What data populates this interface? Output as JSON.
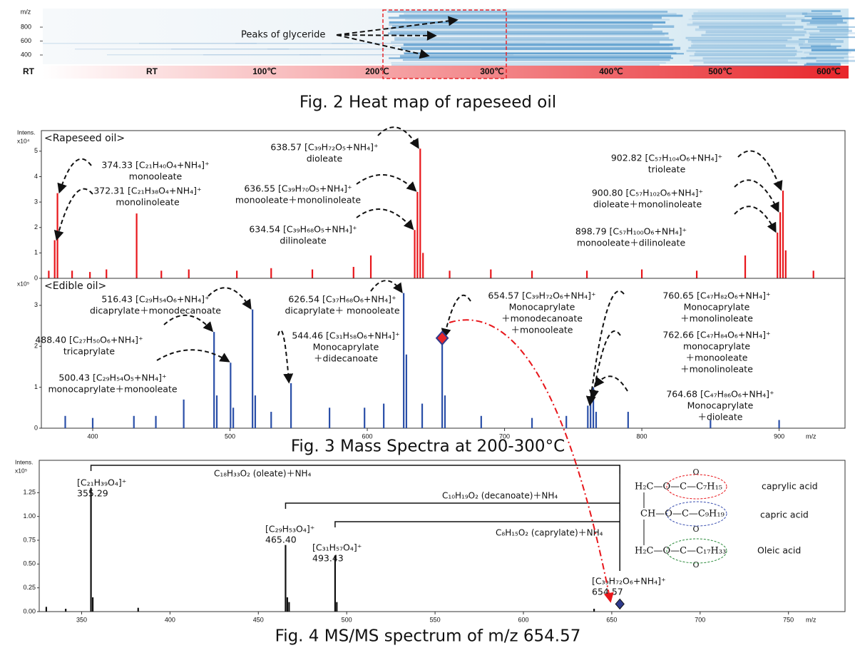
{
  "chart_data": [
    {
      "type": "heatmap",
      "ylabel": "m/z",
      "ylim": [
        267,
        1067
      ],
      "yticks": [
        400,
        600,
        800
      ],
      "categories": [
        "RT",
        "RT",
        "100℃",
        "200℃",
        "300℃",
        "400℃",
        "500℃",
        "600℃"
      ],
      "annotation": "Peaks of glyceride",
      "caption": "Fig. 2 Heat map of rapeseed oil"
    },
    {
      "type": "spectrum",
      "title": "<Rapeseed oil>",
      "ylabel": "Intens.",
      "scale": "x10⁴",
      "color": "#e8161b",
      "xlim": [
        362.6,
        948
      ],
      "ylim": [
        0,
        5.81
      ],
      "yticks": [
        0,
        1,
        2,
        3,
        4,
        5
      ],
      "x": [
        368.0,
        372.31,
        374.33,
        385,
        398,
        410,
        432.0,
        450,
        470,
        505,
        530,
        560,
        590,
        602.6,
        634.54,
        636.55,
        638.57,
        640.6,
        660,
        690,
        720,
        760,
        800,
        840,
        875.3,
        898.79,
        900.8,
        902.82,
        904.8,
        925
      ],
      "values": [
        0.3,
        1.5,
        3.35,
        0.3,
        0.25,
        0.35,
        2.55,
        0.3,
        0.35,
        0.3,
        0.4,
        0.35,
        0.45,
        0.9,
        1.9,
        3.4,
        5.1,
        1.0,
        0.3,
        0.35,
        0.3,
        0.3,
        0.35,
        0.3,
        0.9,
        1.8,
        2.6,
        3.45,
        1.1,
        0.3
      ],
      "annotations": [
        [
          "374.33 [C₂₁H₄₀O₄+NH₄]⁺",
          "monooleate"
        ],
        [
          "372.31 [C₂₁H₃₈O₄+NH₄]⁺",
          "monolinoleate"
        ],
        [
          "638.57 [C₃₉H₇₂O₅+NH₄]⁺",
          "dioleate"
        ],
        [
          "636.55 [C₃₉H₇₀O₅+NH₄]⁺",
          "monooleate＋monolinoleate"
        ],
        [
          "634.54 [C₃₉H₆₈O₅+NH₄]⁺",
          "dilinoleate"
        ],
        [
          "902.82 [C₅₇H₁₀₄O₆+NH₄]⁺",
          "trioleate"
        ],
        [
          "900.80 [C₅₇H₁₀₂O₆+NH₄]⁺",
          "dioleate＋monolinoleate"
        ],
        [
          "898.79 [C₅₇H₁₀₀O₆+NH₄]⁺",
          "monooleate＋dilinoleate"
        ]
      ]
    },
    {
      "type": "spectrum",
      "title": "<Edible oil>",
      "scale": "x10⁵",
      "color": "#2a4fa8",
      "xlabel": "m/z",
      "xlim": [
        362.6,
        948
      ],
      "ylim": [
        0,
        3.66
      ],
      "yticks": [
        0,
        1,
        2,
        3
      ],
      "xticks": [
        400,
        500,
        600,
        700,
        800,
        900
      ],
      "x": [
        380,
        400,
        430,
        446,
        466.3,
        488.4,
        490.4,
        500.43,
        502.4,
        516.43,
        518.4,
        530,
        544.46,
        572.5,
        598,
        612,
        626.54,
        628.5,
        640,
        654.57,
        656.6,
        683,
        720,
        745,
        760.65,
        762.66,
        764.68,
        766.7,
        790,
        850,
        900
      ],
      "values": [
        0.3,
        0.25,
        0.3,
        0.3,
        0.7,
        2.35,
        0.8,
        1.6,
        0.5,
        2.9,
        0.8,
        0.4,
        1.1,
        0.5,
        0.5,
        0.6,
        3.3,
        1.8,
        0.6,
        2.2,
        0.8,
        0.3,
        0.25,
        0.3,
        0.55,
        0.7,
        1.0,
        0.4,
        0.4,
        0.2,
        0.2
      ],
      "annotations": [
        [
          "516.43 [C₂₉H₅₄O₆+NH₄]⁺",
          "dicaprylate＋monodecanoate"
        ],
        [
          "488.40 [C₂₇H₅₀O₆+NH₄]⁺",
          "tricaprylate"
        ],
        [
          "500.43 [C₂₉H₅₄O₅+NH₄]⁺",
          "monocaprylate＋monooleate"
        ],
        [
          "626.54 [C₃₇H₆₈O₆+NH₄]⁺",
          "dicaprylate＋ monooleate"
        ],
        [
          "544.46 [C₃₁H₅₈O₆+NH₄]⁺",
          "Monocaprylate",
          "＋didecanoate"
        ],
        [
          "654.57 [C₃₉H₇₂O₆+NH₄]⁺",
          "Monocaprylate",
          "＋monodecanoate",
          "＋monooleate"
        ],
        [
          "760.65 [C₄₇H₈₂O₆+NH₄]⁺",
          "Monocaprylate",
          "＋monolinoleate"
        ],
        [
          "762.66 [C₄₇H₈₄O₆+NH₄]⁺",
          "monocaprylate",
          "＋monooleate",
          "＋monolinoleate"
        ],
        [
          "764.68 [C₄₇H₈₆O₆+NH₄]⁺",
          "Monocaprylate",
          "＋dioleate"
        ]
      ],
      "caption": "Fig. 3 Mass Spectra at 200-300°C"
    },
    {
      "type": "spectrum",
      "ylabel": "Intens.",
      "scale": "x10⁵",
      "color": "#111111",
      "xlabel": "m/z",
      "xlim": [
        326,
        782
      ],
      "ylim": [
        0,
        1.59
      ],
      "yticks": [
        {
          "value": 0,
          "label": "0.00"
        },
        {
          "value": 0.25,
          "label": "0.25"
        },
        {
          "value": 0.5,
          "label": "0.50"
        },
        {
          "value": 0.75,
          "label": "0.75"
        },
        {
          "value": 1.0,
          "label": "1.00"
        },
        {
          "value": 1.25,
          "label": "1.25"
        }
      ],
      "xticks": [
        350,
        400,
        450,
        500,
        550,
        600,
        650,
        700,
        750
      ],
      "x": [
        330,
        341,
        355.29,
        356.3,
        382,
        465.4,
        466.4,
        467.4,
        493.43,
        494.4,
        640
      ],
      "values": [
        0.05,
        0.03,
        1.3,
        0.15,
        0.04,
        0.7,
        0.15,
        0.1,
        0.59,
        0.1,
        0.03
      ],
      "peak_labels": [
        [
          "[C₂₁H₃₉O₄]⁺",
          "355.29"
        ],
        [
          "[C₂₉H₅₃O₄]⁺",
          "465.40"
        ],
        [
          "[C₃₁H₅₇O₄]⁺",
          "493.43"
        ],
        [
          "[C₃₉H₇₂O₆+NH₄]⁺",
          "654.57"
        ]
      ],
      "precursor": {
        "x": 654.57,
        "value": 0.08,
        "color": "#2e3a8c"
      },
      "fragments": [
        {
          "label": "C₁₈H₃₃O₂ (oleate)＋NH₄",
          "color": "#2a8a3a"
        },
        {
          "label": "C₁₀H₁₉O₂ (decanoate)＋NH₄",
          "color": "#3a4fb0"
        },
        {
          "label": "C₈H₁₅O₂ (caprylate)＋NH₄",
          "color": "#e8161b"
        }
      ],
      "structure": {
        "rows": [
          "H₂C—O—C—C₇H₁₅",
          "CH—O—C—C₉H₁₉",
          "H₂C—O—C—C₁₇H₃₃"
        ],
        "carbonyl": "O",
        "acids": [
          {
            "label": "caprylic acid",
            "color": "#e8161b"
          },
          {
            "label": "capric acid",
            "color": "#3a4fb0"
          },
          {
            "label": "Oleic acid",
            "color": "#2a8a3a"
          }
        ]
      },
      "caption": "Fig. 4 MS/MS spectrum of m/z 654.57"
    }
  ]
}
